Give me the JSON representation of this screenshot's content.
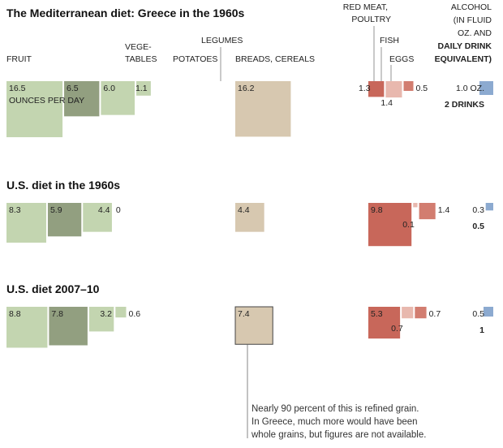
{
  "title": "The Mediterranean diet: Greece in the 1960s",
  "colors": {
    "fruit": "#c3d5b0",
    "vegetables": "#929f80",
    "potatoes": "#c3d5b0",
    "legumes": "#c3d5b0",
    "grains": "#d7c8b0",
    "red_meat": "#c8675a",
    "fish": "#e8b8ae",
    "eggs": "#d27d70",
    "alcohol": "#8caad0"
  },
  "headers": {
    "fruit": "FRUIT",
    "vegetables_1": "VEGE-",
    "vegetables_2": "TABLES",
    "potatoes": "POTATOES",
    "legumes": "LEGUMES",
    "breads": "BREADS, CEREALS",
    "red_meat_1": "RED MEAT,",
    "red_meat_2": "POULTRY",
    "fish": "FISH",
    "eggs": "EGGS",
    "alcohol_1": "ALCOHOL",
    "alcohol_2": "(IN FLUID",
    "alcohol_3": "OZ. AND",
    "alcohol_4": "DAILY DRINK",
    "alcohol_5": "EQUIVALENT)"
  },
  "unit_label": "OUNCES PER DAY",
  "note": {
    "line1": "Nearly 90 percent of this is refined grain.",
    "line2": "In Greece, much more would have been",
    "line3": "whole grains, but figures are not available."
  },
  "chart_data": {
    "type": "bar",
    "categories": [
      "Fruit",
      "Vegetables",
      "Potatoes",
      "Legumes",
      "Breads, cereals",
      "Red meat, poultry",
      "Fish",
      "Eggs",
      "Alcohol"
    ],
    "unit": "ounces per day",
    "series": [
      {
        "name": "The Mediterranean diet: Greece in the 1960s",
        "values": [
          16.5,
          6.5,
          6.0,
          1.1,
          16.2,
          1.3,
          1.4,
          0.5,
          1.0
        ],
        "labels": [
          "16.5",
          "6.5",
          "6.0",
          "1.1",
          "16.2",
          "1.3",
          "1.4",
          "0.5",
          "1.0 OZ."
        ],
        "drinks_label": "2 DRINKS"
      },
      {
        "name": "U.S. diet in the 1960s",
        "values": [
          8.3,
          5.9,
          4.4,
          0,
          4.4,
          9.8,
          0.1,
          1.4,
          0.3
        ],
        "labels": [
          "8.3",
          "5.9",
          "4.4",
          "0",
          "4.4",
          "9.8",
          "0.1",
          "1.4",
          "0.3"
        ],
        "drinks_label": "0.5"
      },
      {
        "name": "U.S. diet 2007–10",
        "values": [
          8.8,
          7.8,
          3.2,
          0.6,
          7.4,
          5.3,
          0.7,
          0.7,
          0.5
        ],
        "labels": [
          "8.8",
          "7.8",
          "3.2",
          "0.6",
          "7.4",
          "5.3",
          "0.7",
          "0.7",
          "0.5"
        ],
        "drinks_label": "1"
      }
    ]
  }
}
